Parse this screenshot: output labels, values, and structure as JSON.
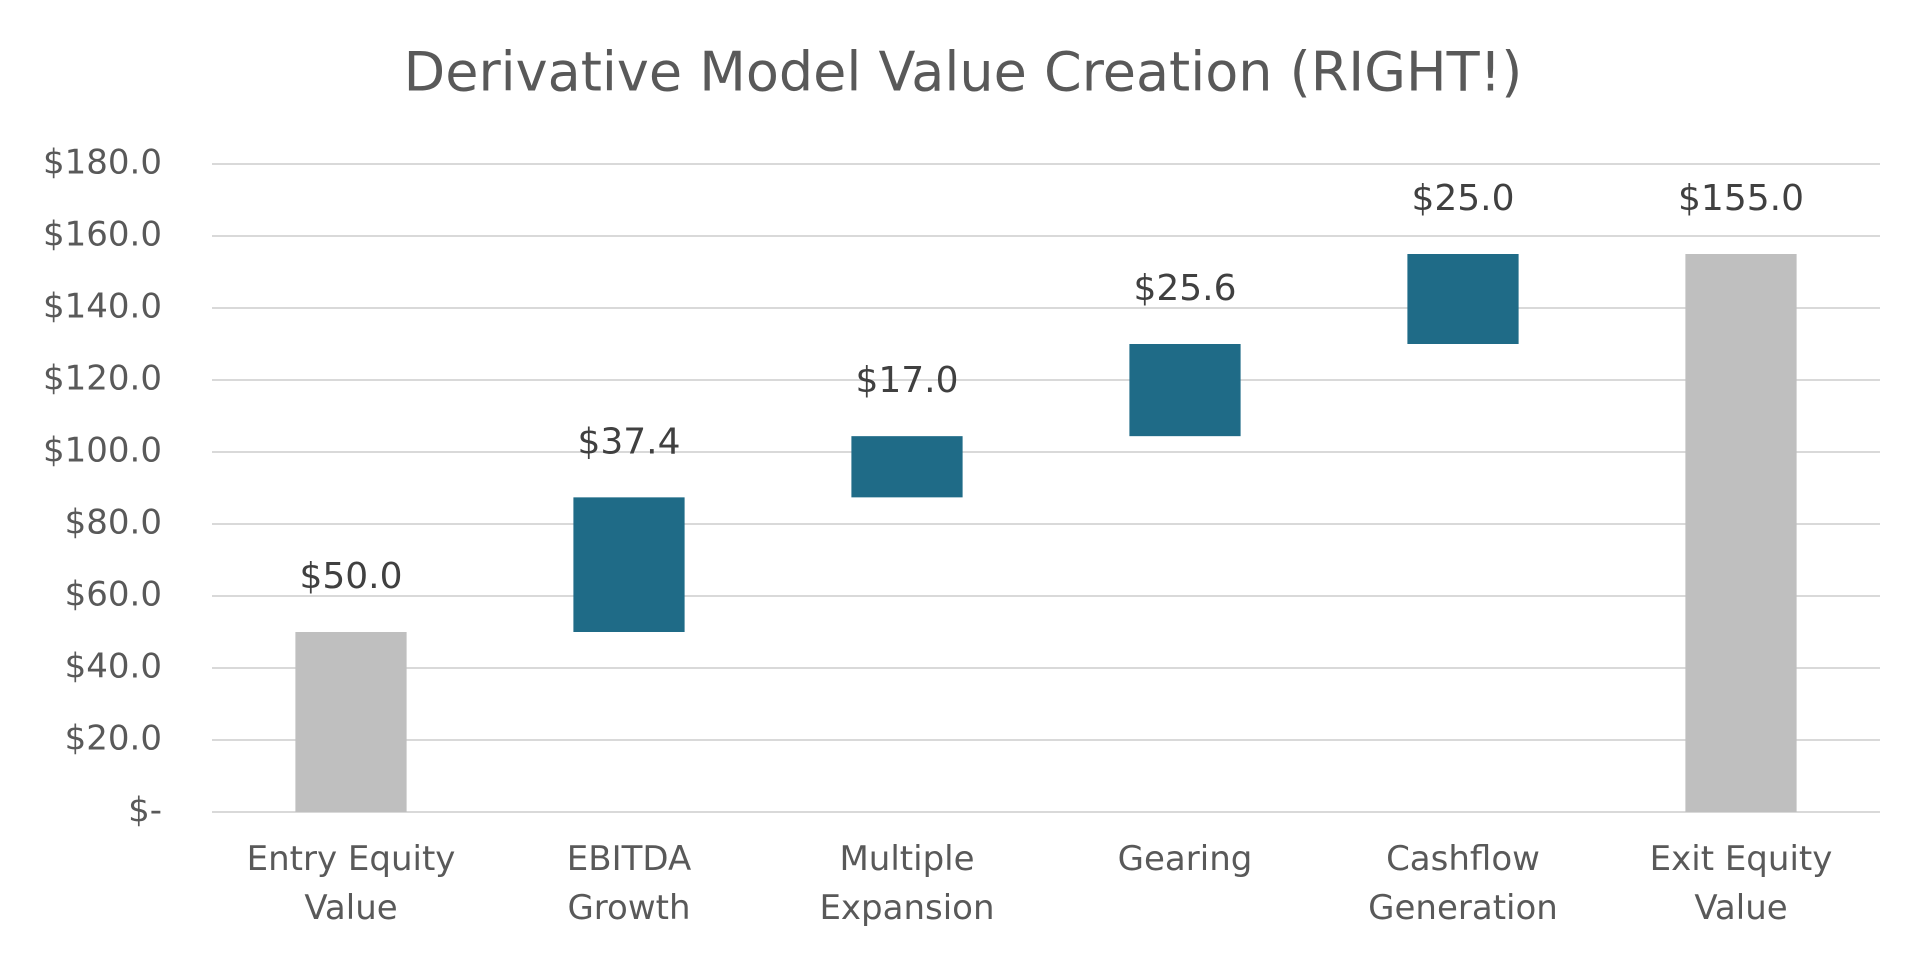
{
  "chart_data": {
    "type": "waterfall",
    "title": "Derivative Model Value Creation (RIGHT!)",
    "categories": [
      "Entry Equity Value",
      "EBITDA Growth",
      "Multiple Expansion",
      "Gearing",
      "Cashflow Generation",
      "Exit Equity Value"
    ],
    "values": [
      50.0,
      37.4,
      17.0,
      25.6,
      25.0,
      155.0
    ],
    "value_labels": [
      "$50.0",
      "$37.4",
      "$17.0",
      "$25.6",
      "$25.0",
      "$155.0"
    ],
    "is_total": [
      true,
      false,
      false,
      false,
      false,
      true
    ],
    "colors": [
      "#bfbfbf",
      "#1f6b87",
      "#1f6b87",
      "#1f6b87",
      "#1f6b87",
      "#bfbfbf"
    ],
    "ylim": [
      0,
      180
    ],
    "yticks": [
      {
        "value": 0,
        "label": "$-"
      },
      {
        "value": 20,
        "label": "$20.0"
      },
      {
        "value": 40,
        "label": "$40.0"
      },
      {
        "value": 60,
        "label": "$60.0"
      },
      {
        "value": 80,
        "label": "$80.0"
      },
      {
        "value": 100,
        "label": "$100.0"
      },
      {
        "value": 120,
        "label": "$120.0"
      },
      {
        "value": 140,
        "label": "$140.0"
      },
      {
        "value": 160,
        "label": "$160.0"
      },
      {
        "value": 180,
        "label": "$180.0"
      }
    ],
    "grid": true
  }
}
